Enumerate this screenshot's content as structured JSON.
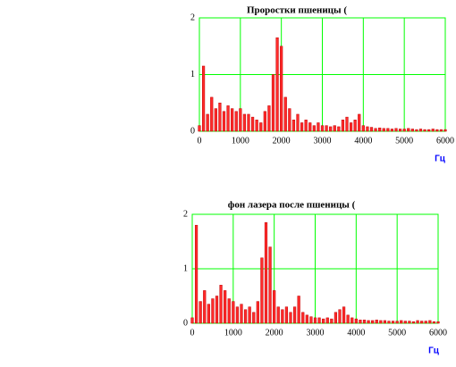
{
  "chart_data": [
    {
      "type": "bar",
      "title": "Проростки пшеницы (",
      "xlabel": "Гц",
      "color": "#ff2a2a",
      "grid": true,
      "x": [
        0,
        100,
        200,
        300,
        400,
        500,
        600,
        700,
        800,
        900,
        1000,
        1100,
        1200,
        1300,
        1400,
        1500,
        1600,
        1700,
        1800,
        1900,
        2000,
        2100,
        2200,
        2300,
        2400,
        2500,
        2600,
        2700,
        2800,
        2900,
        3000,
        3100,
        3200,
        3300,
        3400,
        3500,
        3600,
        3700,
        3800,
        3900,
        4000,
        4100,
        4200,
        4300,
        4400,
        4500,
        4600,
        4700,
        4800,
        4900,
        5000,
        5100,
        5200,
        5300,
        5400,
        5500,
        5600,
        5700,
        5800,
        5900,
        6000
      ],
      "values": [
        0.1,
        1.15,
        0.3,
        0.6,
        0.4,
        0.5,
        0.35,
        0.45,
        0.4,
        0.35,
        0.4,
        0.3,
        0.3,
        0.25,
        0.2,
        0.15,
        0.35,
        0.45,
        1.0,
        1.65,
        1.5,
        0.6,
        0.4,
        0.2,
        0.3,
        0.15,
        0.2,
        0.15,
        0.1,
        0.15,
        0.1,
        0.1,
        0.08,
        0.1,
        0.08,
        0.2,
        0.25,
        0.15,
        0.2,
        0.3,
        0.1,
        0.08,
        0.07,
        0.05,
        0.06,
        0.05,
        0.05,
        0.04,
        0.05,
        0.04,
        0.04,
        0.05,
        0.04,
        0.03,
        0.04,
        0.03,
        0.03,
        0.04,
        0.03,
        0.03,
        0.03
      ],
      "xlim": [
        0,
        6000
      ],
      "ylim": [
        0,
        2
      ],
      "xticks": [
        0,
        1000,
        2000,
        3000,
        4000,
        5000,
        6000
      ],
      "yticks": [
        0,
        1,
        2
      ]
    },
    {
      "type": "bar",
      "title": "фон лазера после пшеницы (",
      "xlabel": "Гц",
      "color": "#ff2a2a",
      "grid": true,
      "x": [
        0,
        100,
        200,
        300,
        400,
        500,
        600,
        700,
        800,
        900,
        1000,
        1100,
        1200,
        1300,
        1400,
        1500,
        1600,
        1700,
        1800,
        1900,
        2000,
        2100,
        2200,
        2300,
        2400,
        2500,
        2600,
        2700,
        2800,
        2900,
        3000,
        3100,
        3200,
        3300,
        3400,
        3500,
        3600,
        3700,
        3800,
        3900,
        4000,
        4100,
        4200,
        4300,
        4400,
        4500,
        4600,
        4700,
        4800,
        4900,
        5000,
        5100,
        5200,
        5300,
        5400,
        5500,
        5600,
        5700,
        5800,
        5900,
        6000
      ],
      "values": [
        0.1,
        1.8,
        0.4,
        0.6,
        0.35,
        0.45,
        0.5,
        0.7,
        0.6,
        0.45,
        0.4,
        0.3,
        0.35,
        0.25,
        0.3,
        0.2,
        0.4,
        1.2,
        1.85,
        1.4,
        0.6,
        0.3,
        0.25,
        0.3,
        0.2,
        0.3,
        0.5,
        0.2,
        0.15,
        0.12,
        0.1,
        0.1,
        0.08,
        0.1,
        0.08,
        0.2,
        0.25,
        0.3,
        0.15,
        0.1,
        0.08,
        0.06,
        0.06,
        0.05,
        0.05,
        0.06,
        0.05,
        0.05,
        0.04,
        0.04,
        0.04,
        0.05,
        0.04,
        0.04,
        0.03,
        0.05,
        0.04,
        0.04,
        0.05,
        0.03,
        0.03
      ],
      "xlim": [
        0,
        6000
      ],
      "ylim": [
        0,
        2
      ],
      "xticks": [
        0,
        1000,
        2000,
        3000,
        4000,
        5000,
        6000
      ],
      "yticks": [
        0,
        1,
        2
      ]
    }
  ]
}
